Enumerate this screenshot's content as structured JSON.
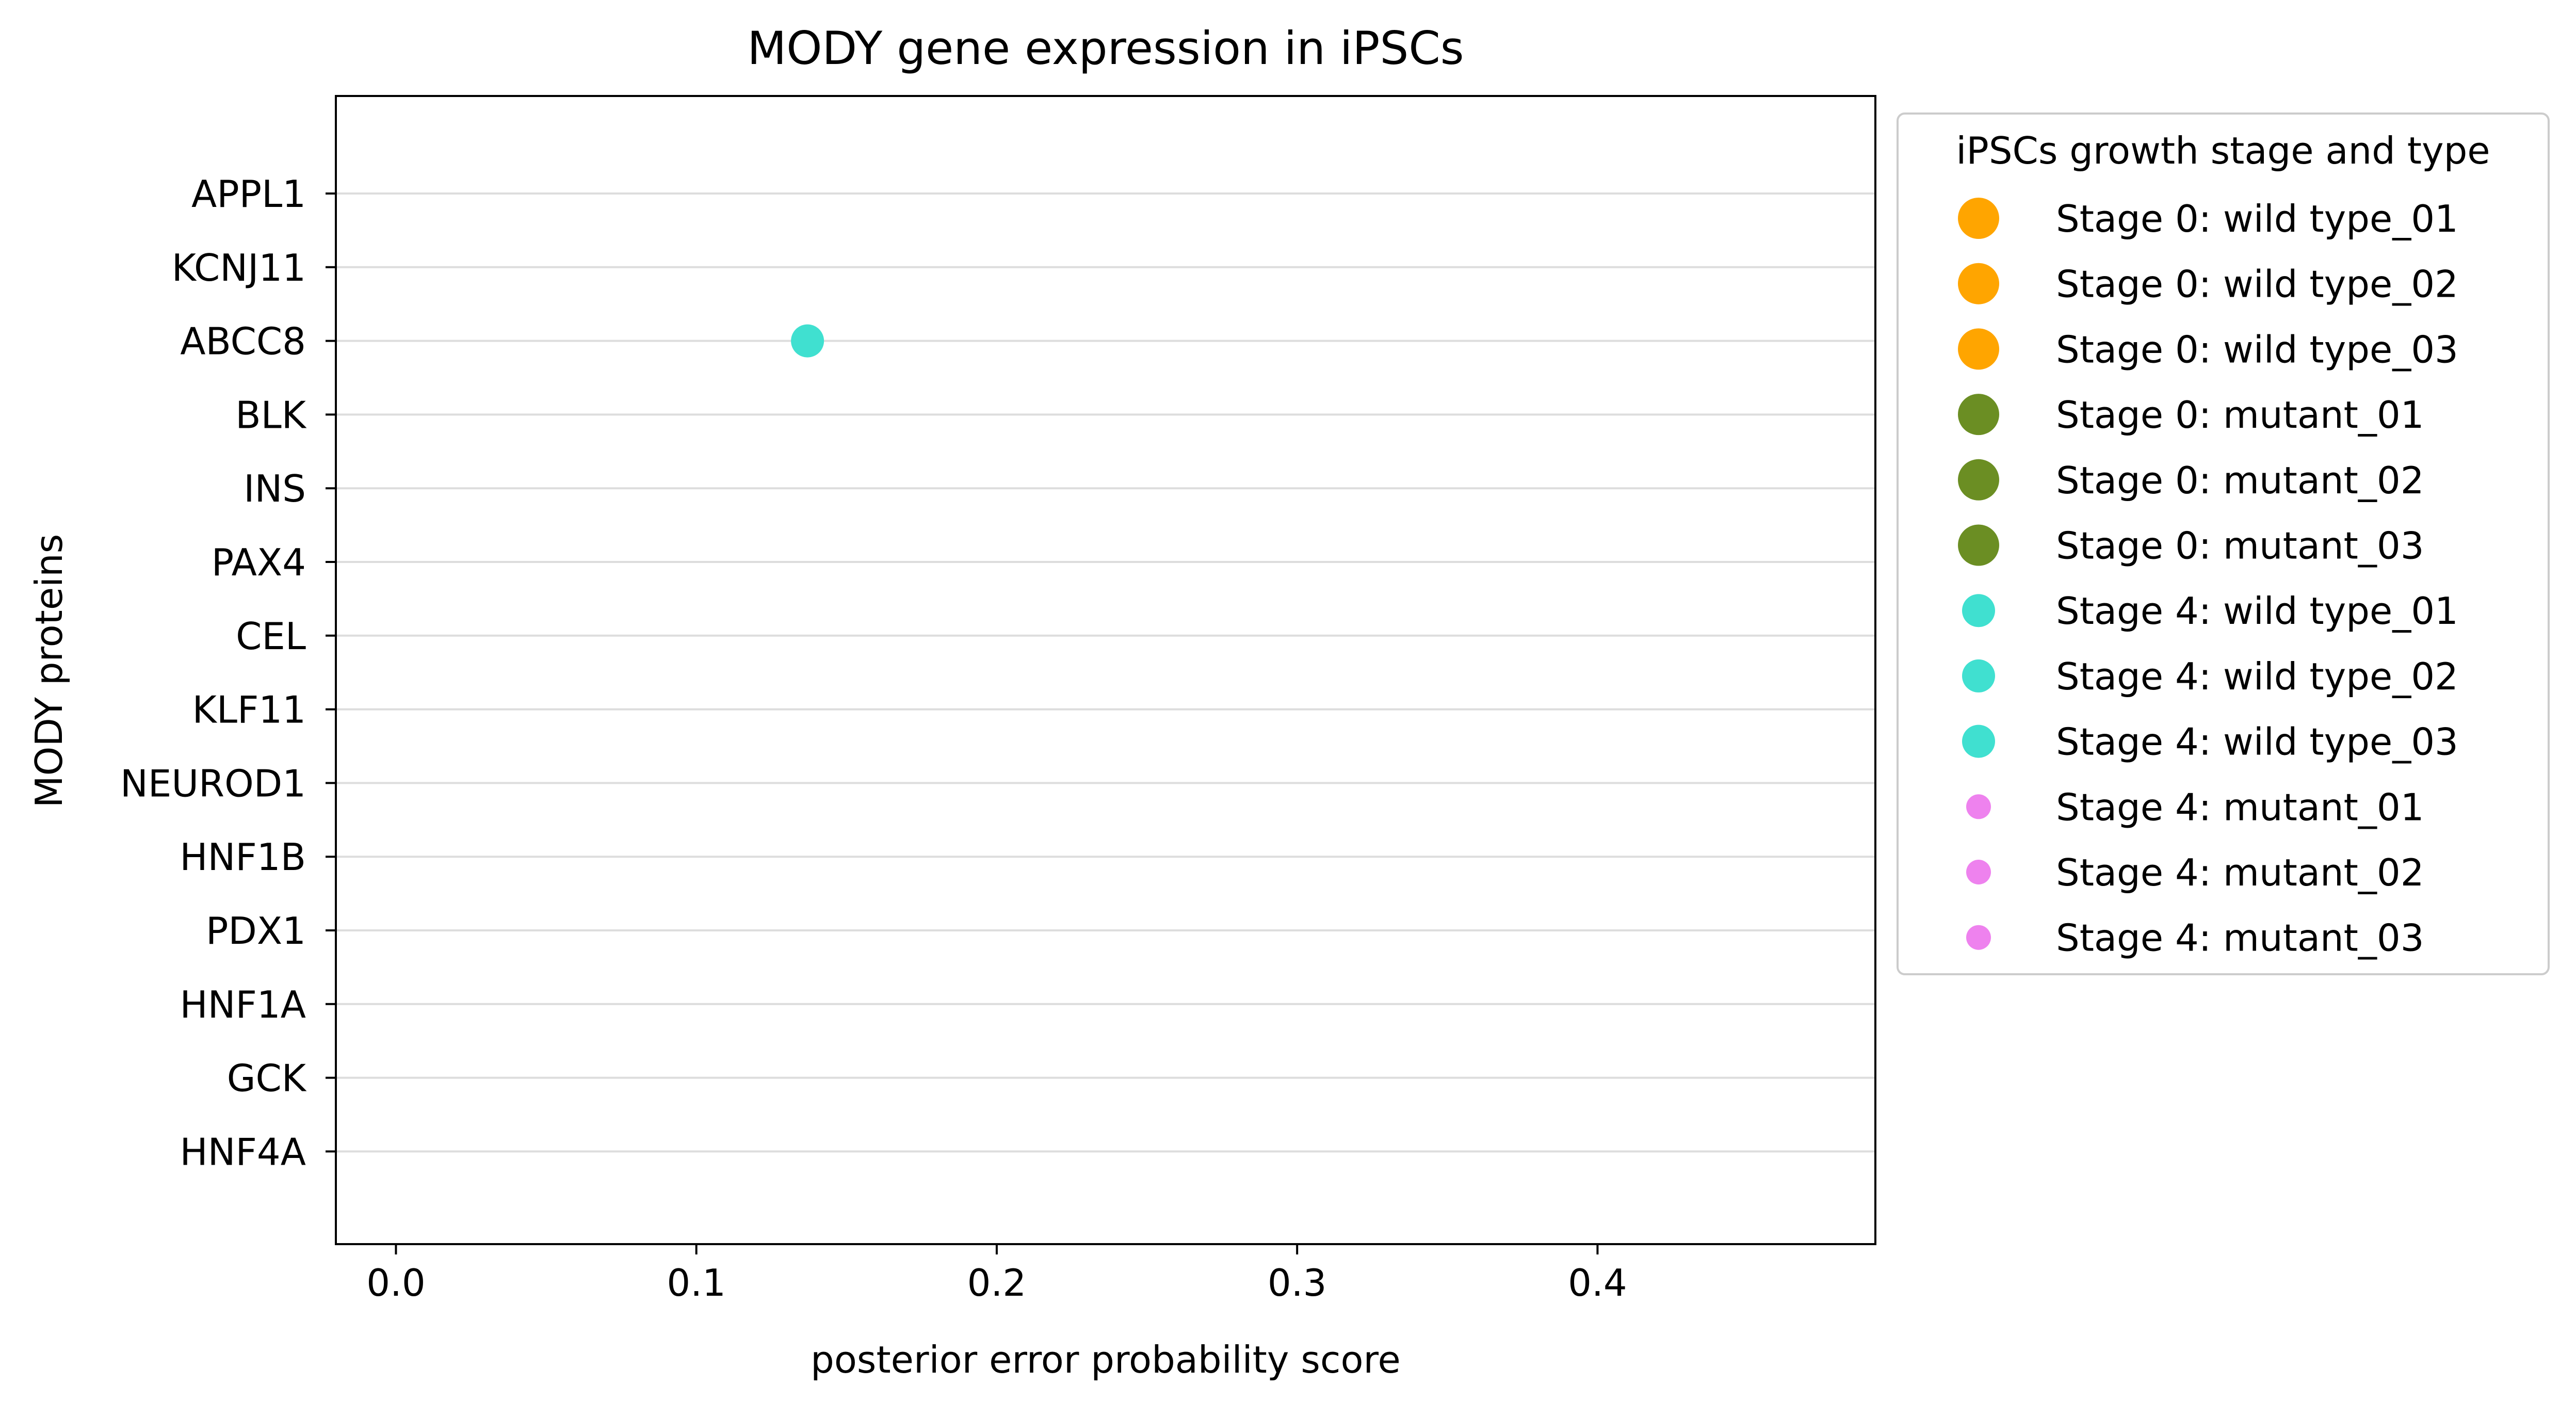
{
  "chart_data": {
    "type": "scatter",
    "title": "MODY gene expression in iPSCs",
    "xlabel": "posterior error probability score",
    "ylabel": "MODY proteins",
    "xlim": [
      -0.02,
      0.4925
    ],
    "xticks": [
      "0.0",
      "0.1",
      "0.2",
      "0.3",
      "0.4"
    ],
    "categories": [
      "APPL1",
      "KCNJ11",
      "ABCC8",
      "BLK",
      "INS",
      "PAX4",
      "CEL",
      "KLF11",
      "NEUROD1",
      "HNF1B",
      "PDX1",
      "HNF1A",
      "GCK",
      "HNF4A"
    ],
    "grid": "horizontal",
    "legend": {
      "title": "iPSCs growth stage and type",
      "placement": "outside-right"
    },
    "series": [
      {
        "name": "Stage 0: wild type_01",
        "color": "#ffa500",
        "marker": "large",
        "points": []
      },
      {
        "name": "Stage 0: wild type_02",
        "color": "#ffa500",
        "marker": "large",
        "points": []
      },
      {
        "name": "Stage 0: wild type_03",
        "color": "#ffa500",
        "marker": "large",
        "points": []
      },
      {
        "name": "Stage 0: mutant_01",
        "color": "#6b8e23",
        "marker": "large",
        "points": []
      },
      {
        "name": "Stage 0: mutant_02",
        "color": "#6b8e23",
        "marker": "large",
        "points": []
      },
      {
        "name": "Stage 0: mutant_03",
        "color": "#6b8e23",
        "marker": "large",
        "points": []
      },
      {
        "name": "Stage 4: wild type_01",
        "color": "#40e0d0",
        "marker": "medium",
        "points": [
          {
            "x": 0.137,
            "y": "ABCC8"
          }
        ]
      },
      {
        "name": "Stage 4: wild type_02",
        "color": "#40e0d0",
        "marker": "medium",
        "points": []
      },
      {
        "name": "Stage 4: wild type_03",
        "color": "#40e0d0",
        "marker": "medium",
        "points": []
      },
      {
        "name": "Stage 4: mutant_01",
        "color": "#ee82ee",
        "marker": "small",
        "points": []
      },
      {
        "name": "Stage 4: mutant_02",
        "color": "#ee82ee",
        "marker": "small",
        "points": []
      },
      {
        "name": "Stage 4: mutant_03",
        "color": "#ee82ee",
        "marker": "small",
        "points": []
      }
    ]
  }
}
